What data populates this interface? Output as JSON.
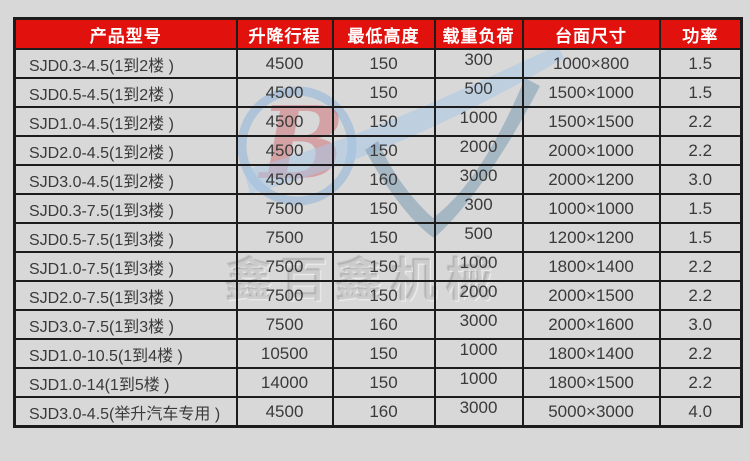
{
  "colors": {
    "pageBg": "#d8d8d8",
    "headerBg": "#e1110e",
    "headerText": "#ffffff",
    "border": "#1c1c1c",
    "cellText": "#3a3a3a",
    "logoRing": "#86b0d8",
    "logoGlyphRed": "#cf4a52",
    "swooshLight": "#a9c8e6",
    "swooshDark": "#7e9cb4"
  },
  "watermark": {
    "text": "鑫百鑫机械",
    "logo_letter": "B"
  },
  "table": {
    "columns": [
      "产品型号",
      "升降行程",
      "最低高度",
      "载重负荷",
      "台面尺寸",
      "功率"
    ],
    "rows": [
      [
        "SJD0.3-4.5(1到2楼 )",
        "4500",
        "150",
        "300",
        "1000×800",
        "1.5"
      ],
      [
        "SJD0.5-4.5(1到2楼 )",
        "4500",
        "150",
        "500",
        "1500×1000",
        "1.5"
      ],
      [
        "SJD1.0-4.5(1到2楼 )",
        "4500",
        "150",
        "1000",
        "1500×1500",
        "2.2"
      ],
      [
        "SJD2.0-4.5(1到2楼 )",
        "4500",
        "150",
        "2000",
        "2000×1000",
        "2.2"
      ],
      [
        "SJD3.0-4.5(1到2楼 )",
        "4500",
        "160",
        "3000",
        "2000×1200",
        "3.0"
      ],
      [
        "SJD0.3-7.5(1到3楼 )",
        "7500",
        "150",
        "300",
        "1000×1000",
        "1.5"
      ],
      [
        "SJD0.5-7.5(1到3楼 )",
        "7500",
        "150",
        "500",
        "1200×1200",
        "1.5"
      ],
      [
        "SJD1.0-7.5(1到3楼 )",
        "7500",
        "150",
        "1000",
        "1800×1400",
        "2.2"
      ],
      [
        "SJD2.0-7.5(1到3楼 )",
        "7500",
        "150",
        "2000",
        "2000×1500",
        "2.2"
      ],
      [
        "SJD3.0-7.5(1到3楼 )",
        "7500",
        "160",
        "3000",
        "2000×1600",
        "3.0"
      ],
      [
        "SJD1.0-10.5(1到4楼 )",
        "10500",
        "150",
        "1000",
        "1800×1400",
        "2.2"
      ],
      [
        "SJD1.0-14(1到5楼 )",
        "14000",
        "150",
        "1000",
        "1800×1500",
        "2.2"
      ],
      [
        "SJD3.0-4.5(举升汽车专用 )",
        "4500",
        "160",
        "3000",
        "5000×3000",
        "4.0"
      ]
    ]
  }
}
